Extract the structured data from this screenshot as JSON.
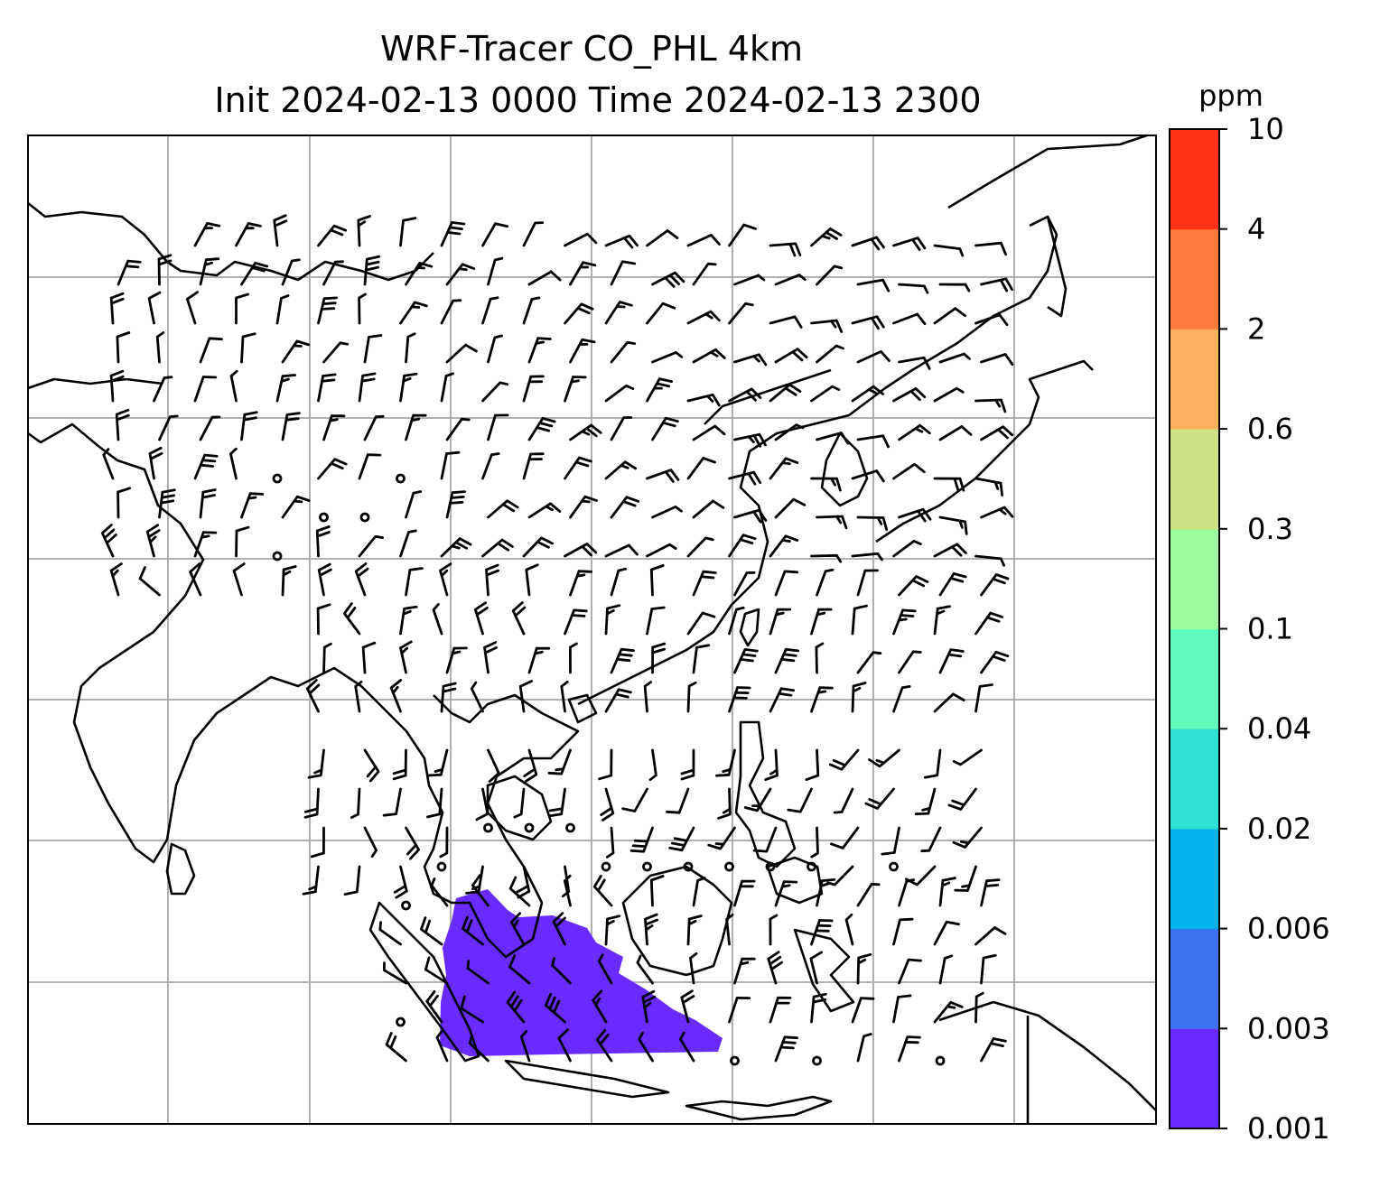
{
  "chart_data": {
    "type": "heatmap",
    "title_line1": "WRF-Tracer CO_PHL 4km",
    "title_line2": "Init 2024-02-13 0000 Time 2024-02-13 2300",
    "colorbar": {
      "unit": "ppm",
      "levels": [
        "0.001",
        "0.003",
        "0.006",
        "0.02",
        "0.04",
        "0.1",
        "0.3",
        "0.6",
        "2",
        "4",
        "10"
      ],
      "colors": [
        "#6a2bff",
        "#3a72f2",
        "#06b2eb",
        "#2fe0d5",
        "#63fbbd",
        "#9cfb9b",
        "#cde184",
        "#fbb05e",
        "#ff7b3c",
        "#ff3218"
      ]
    },
    "map": {
      "grid": true,
      "vector_field": "wind-barbs",
      "coastlines": true,
      "plume_fill_level": "0.001"
    }
  }
}
